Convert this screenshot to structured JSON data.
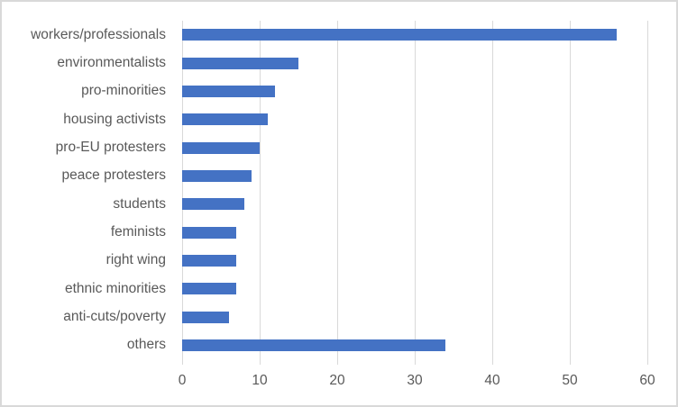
{
  "chart_data": {
    "type": "bar",
    "orientation": "horizontal",
    "title": "",
    "xlabel": "",
    "ylabel": "",
    "categories": [
      "workers/professionals",
      "environmentalists",
      "pro-minorities",
      "housing activists",
      "pro-EU protesters",
      "peace protesters",
      "students",
      "feminists",
      "right wing",
      "ethnic minorities",
      "anti-cuts/poverty",
      "others"
    ],
    "values": [
      56,
      15,
      12,
      11,
      10,
      9,
      8,
      7,
      7,
      7,
      6,
      34
    ],
    "xlim": [
      0,
      60
    ],
    "x_ticks": [
      "0",
      "10",
      "20",
      "30",
      "40",
      "50",
      "60"
    ],
    "grid": true,
    "legend": "none",
    "colors": {
      "bar": "#4472C4",
      "gridline": "#d9d9d9",
      "tick_text": "#595959",
      "category_text": "#595959",
      "chart_border": "#d9d9d9",
      "background": "#ffffff"
    }
  }
}
